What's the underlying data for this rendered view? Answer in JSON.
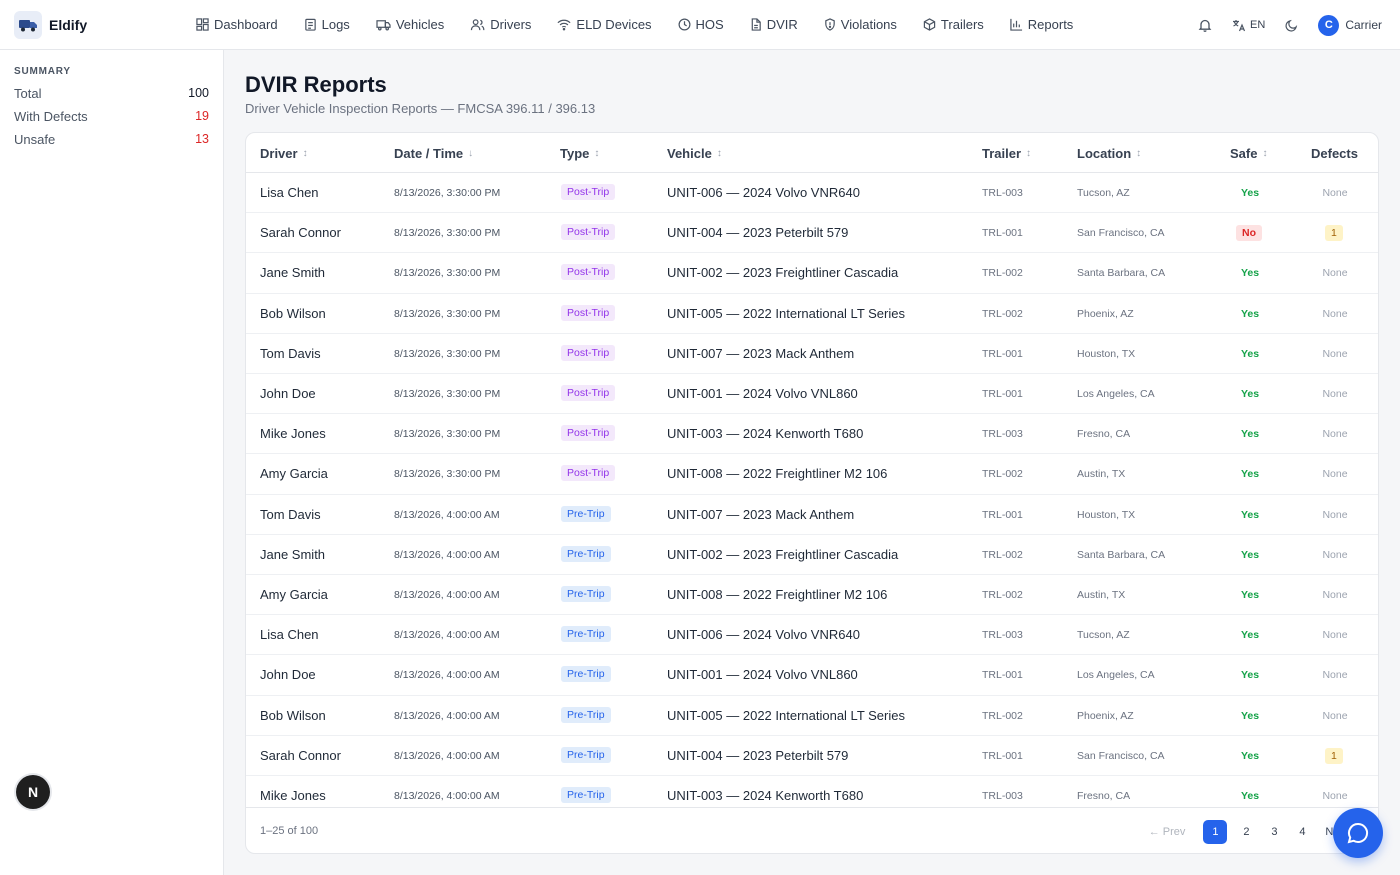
{
  "brand": {
    "name": "Eldify"
  },
  "nav": {
    "items": [
      {
        "label": "Dashboard",
        "icon": "dashboard-icon"
      },
      {
        "label": "Logs",
        "icon": "logs-icon"
      },
      {
        "label": "Vehicles",
        "icon": "truck-icon"
      },
      {
        "label": "Drivers",
        "icon": "users-icon"
      },
      {
        "label": "ELD Devices",
        "icon": "wifi-icon"
      },
      {
        "label": "HOS",
        "icon": "clock-icon"
      },
      {
        "label": "DVIR",
        "icon": "file-icon"
      },
      {
        "label": "Violations",
        "icon": "shield-icon"
      },
      {
        "label": "Trailers",
        "icon": "box-icon"
      },
      {
        "label": "Reports",
        "icon": "bar-chart-icon"
      }
    ]
  },
  "topright": {
    "lang": "EN",
    "avatar_initial": "C",
    "account_name": "Carrier"
  },
  "summary": {
    "title": "SUMMARY",
    "total_label": "Total",
    "total_value": "100",
    "defects_label": "With Defects",
    "defects_value": "19",
    "unsafe_label": "Unsafe",
    "unsafe_value": "13"
  },
  "page": {
    "title": "DVIR Reports",
    "subtitle": "Driver Vehicle Inspection Reports — FMCSA 396.11 / 396.13"
  },
  "table": {
    "headers": {
      "driver": "Driver",
      "datetime": "Date / Time",
      "type": "Type",
      "vehicle": "Vehicle",
      "trailer": "Trailer",
      "location": "Location",
      "safe": "Safe",
      "defects": "Defects"
    },
    "rows": [
      {
        "driver": "Lisa Chen",
        "datetime": "8/13/2026, 3:30:00 PM",
        "type": "Post-Trip",
        "vehicle": "UNIT-006 — 2024 Volvo VNR640",
        "trailer": "TRL-003",
        "location": "Tucson, AZ",
        "safe": "Yes",
        "defects": "None"
      },
      {
        "driver": "Sarah Connor",
        "datetime": "8/13/2026, 3:30:00 PM",
        "type": "Post-Trip",
        "vehicle": "UNIT-004 — 2023 Peterbilt 579",
        "trailer": "TRL-001",
        "location": "San Francisco, CA",
        "safe": "No",
        "defects": "1"
      },
      {
        "driver": "Jane Smith",
        "datetime": "8/13/2026, 3:30:00 PM",
        "type": "Post-Trip",
        "vehicle": "UNIT-002 — 2023 Freightliner Cascadia",
        "trailer": "TRL-002",
        "location": "Santa Barbara, CA",
        "safe": "Yes",
        "defects": "None"
      },
      {
        "driver": "Bob Wilson",
        "datetime": "8/13/2026, 3:30:00 PM",
        "type": "Post-Trip",
        "vehicle": "UNIT-005 — 2022 International LT Series",
        "trailer": "TRL-002",
        "location": "Phoenix, AZ",
        "safe": "Yes",
        "defects": "None"
      },
      {
        "driver": "Tom Davis",
        "datetime": "8/13/2026, 3:30:00 PM",
        "type": "Post-Trip",
        "vehicle": "UNIT-007 — 2023 Mack Anthem",
        "trailer": "TRL-001",
        "location": "Houston, TX",
        "safe": "Yes",
        "defects": "None"
      },
      {
        "driver": "John Doe",
        "datetime": "8/13/2026, 3:30:00 PM",
        "type": "Post-Trip",
        "vehicle": "UNIT-001 — 2024 Volvo VNL860",
        "trailer": "TRL-001",
        "location": "Los Angeles, CA",
        "safe": "Yes",
        "defects": "None"
      },
      {
        "driver": "Mike Jones",
        "datetime": "8/13/2026, 3:30:00 PM",
        "type": "Post-Trip",
        "vehicle": "UNIT-003 — 2024 Kenworth T680",
        "trailer": "TRL-003",
        "location": "Fresno, CA",
        "safe": "Yes",
        "defects": "None"
      },
      {
        "driver": "Amy Garcia",
        "datetime": "8/13/2026, 3:30:00 PM",
        "type": "Post-Trip",
        "vehicle": "UNIT-008 — 2022 Freightliner M2 106",
        "trailer": "TRL-002",
        "location": "Austin, TX",
        "safe": "Yes",
        "defects": "None"
      },
      {
        "driver": "Tom Davis",
        "datetime": "8/13/2026, 4:00:00 AM",
        "type": "Pre-Trip",
        "vehicle": "UNIT-007 — 2023 Mack Anthem",
        "trailer": "TRL-001",
        "location": "Houston, TX",
        "safe": "Yes",
        "defects": "None"
      },
      {
        "driver": "Jane Smith",
        "datetime": "8/13/2026, 4:00:00 AM",
        "type": "Pre-Trip",
        "vehicle": "UNIT-002 — 2023 Freightliner Cascadia",
        "trailer": "TRL-002",
        "location": "Santa Barbara, CA",
        "safe": "Yes",
        "defects": "None"
      },
      {
        "driver": "Amy Garcia",
        "datetime": "8/13/2026, 4:00:00 AM",
        "type": "Pre-Trip",
        "vehicle": "UNIT-008 — 2022 Freightliner M2 106",
        "trailer": "TRL-002",
        "location": "Austin, TX",
        "safe": "Yes",
        "defects": "None"
      },
      {
        "driver": "Lisa Chen",
        "datetime": "8/13/2026, 4:00:00 AM",
        "type": "Pre-Trip",
        "vehicle": "UNIT-006 — 2024 Volvo VNR640",
        "trailer": "TRL-003",
        "location": "Tucson, AZ",
        "safe": "Yes",
        "defects": "None"
      },
      {
        "driver": "John Doe",
        "datetime": "8/13/2026, 4:00:00 AM",
        "type": "Pre-Trip",
        "vehicle": "UNIT-001 — 2024 Volvo VNL860",
        "trailer": "TRL-001",
        "location": "Los Angeles, CA",
        "safe": "Yes",
        "defects": "None"
      },
      {
        "driver": "Bob Wilson",
        "datetime": "8/13/2026, 4:00:00 AM",
        "type": "Pre-Trip",
        "vehicle": "UNIT-005 — 2022 International LT Series",
        "trailer": "TRL-002",
        "location": "Phoenix, AZ",
        "safe": "Yes",
        "defects": "None"
      },
      {
        "driver": "Sarah Connor",
        "datetime": "8/13/2026, 4:00:00 AM",
        "type": "Pre-Trip",
        "vehicle": "UNIT-004 — 2023 Peterbilt 579",
        "trailer": "TRL-001",
        "location": "San Francisco, CA",
        "safe": "Yes",
        "defects": "1"
      },
      {
        "driver": "Mike Jones",
        "datetime": "8/13/2026, 4:00:00 AM",
        "type": "Pre-Trip",
        "vehicle": "UNIT-003 — 2024 Kenworth T680",
        "trailer": "TRL-003",
        "location": "Fresno, CA",
        "safe": "Yes",
        "defects": "None"
      }
    ]
  },
  "pagination": {
    "range": "1–25 of 100",
    "prev": "← Prev",
    "pages": [
      "1",
      "2",
      "3",
      "4"
    ],
    "next": "Next"
  },
  "widgets": {
    "nextjs_badge": "N",
    "chat_icon": "chat-icon"
  },
  "colors": {
    "accent": "#2563eb",
    "danger": "#dc2626",
    "success": "#16a34a"
  }
}
